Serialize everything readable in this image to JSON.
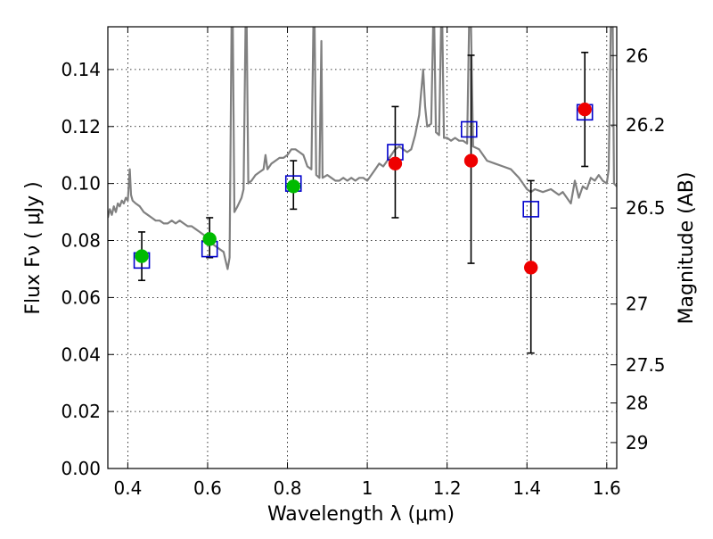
{
  "chart_data": {
    "type": "scatter",
    "title": "",
    "xlabel": "Wavelength  λ (μm)",
    "ylabel": "Flux  Fν  ( μJy )",
    "ylabel_right": "Magnitude (AB)",
    "xlim": [
      0.35,
      1.625
    ],
    "ylim": [
      0.0,
      0.155
    ],
    "grid": true,
    "x_ticks": [
      0.4,
      0.6,
      0.8,
      1.0,
      1.2,
      1.4,
      1.6
    ],
    "x_tick_labels": [
      "0.4",
      "0.6",
      "0.8",
      "1",
      "1.2",
      "1.4",
      "1.6"
    ],
    "y_ticks": [
      0.0,
      0.02,
      0.04,
      0.06,
      0.08,
      0.1,
      0.12,
      0.14
    ],
    "y_tick_labels": [
      "0.00",
      "0.02",
      "0.04",
      "0.06",
      "0.08",
      "0.10",
      "0.12",
      "0.14"
    ],
    "right_ticks": [
      {
        "label": "26",
        "flux": 0.1449
      },
      {
        "label": "26.2",
        "flux": 0.1205
      },
      {
        "label": "26.5",
        "flux": 0.0914
      },
      {
        "label": "27",
        "flux": 0.0577
      },
      {
        "label": "27.5",
        "flux": 0.0364
      },
      {
        "label": "28",
        "flux": 0.023
      },
      {
        "label": "29",
        "flux": 0.0091
      }
    ],
    "series": [
      {
        "marker": "line",
        "color": "#808080",
        "points": [
          [
            0.35,
            0.088
          ],
          [
            0.355,
            0.091
          ],
          [
            0.36,
            0.089
          ],
          [
            0.365,
            0.092
          ],
          [
            0.37,
            0.09
          ],
          [
            0.375,
            0.093
          ],
          [
            0.38,
            0.092
          ],
          [
            0.385,
            0.094
          ],
          [
            0.39,
            0.093
          ],
          [
            0.395,
            0.095
          ],
          [
            0.4,
            0.094
          ],
          [
            0.405,
            0.105
          ],
          [
            0.408,
            0.096
          ],
          [
            0.412,
            0.094
          ],
          [
            0.42,
            0.093
          ],
          [
            0.43,
            0.092
          ],
          [
            0.44,
            0.09
          ],
          [
            0.45,
            0.089
          ],
          [
            0.46,
            0.088
          ],
          [
            0.47,
            0.087
          ],
          [
            0.48,
            0.087
          ],
          [
            0.49,
            0.086
          ],
          [
            0.5,
            0.086
          ],
          [
            0.51,
            0.087
          ],
          [
            0.52,
            0.086
          ],
          [
            0.53,
            0.087
          ],
          [
            0.54,
            0.086
          ],
          [
            0.55,
            0.085
          ],
          [
            0.56,
            0.085
          ],
          [
            0.57,
            0.084
          ],
          [
            0.58,
            0.083
          ],
          [
            0.59,
            0.082
          ],
          [
            0.6,
            0.081
          ],
          [
            0.61,
            0.079
          ],
          [
            0.62,
            0.078
          ],
          [
            0.63,
            0.077
          ],
          [
            0.64,
            0.076
          ],
          [
            0.645,
            0.073
          ],
          [
            0.65,
            0.07
          ],
          [
            0.655,
            0.074
          ],
          [
            0.66,
            0.155
          ],
          [
            0.663,
            0.155
          ],
          [
            0.667,
            0.09
          ],
          [
            0.675,
            0.092
          ],
          [
            0.685,
            0.095
          ],
          [
            0.69,
            0.098
          ],
          [
            0.695,
            0.155
          ],
          [
            0.698,
            0.155
          ],
          [
            0.702,
            0.1
          ],
          [
            0.71,
            0.101
          ],
          [
            0.72,
            0.103
          ],
          [
            0.73,
            0.104
          ],
          [
            0.74,
            0.105
          ],
          [
            0.745,
            0.11
          ],
          [
            0.75,
            0.105
          ],
          [
            0.76,
            0.107
          ],
          [
            0.77,
            0.108
          ],
          [
            0.78,
            0.109
          ],
          [
            0.79,
            0.109
          ],
          [
            0.8,
            0.11
          ],
          [
            0.81,
            0.112
          ],
          [
            0.82,
            0.112
          ],
          [
            0.83,
            0.111
          ],
          [
            0.84,
            0.11
          ],
          [
            0.85,
            0.106
          ],
          [
            0.86,
            0.105
          ],
          [
            0.865,
            0.155
          ],
          [
            0.868,
            0.155
          ],
          [
            0.872,
            0.103
          ],
          [
            0.88,
            0.102
          ],
          [
            0.885,
            0.15
          ],
          [
            0.888,
            0.102
          ],
          [
            0.9,
            0.103
          ],
          [
            0.91,
            0.102
          ],
          [
            0.92,
            0.101
          ],
          [
            0.93,
            0.101
          ],
          [
            0.94,
            0.102
          ],
          [
            0.95,
            0.101
          ],
          [
            0.96,
            0.102
          ],
          [
            0.97,
            0.101
          ],
          [
            0.98,
            0.102
          ],
          [
            0.99,
            0.102
          ],
          [
            1.0,
            0.101
          ],
          [
            1.01,
            0.103
          ],
          [
            1.02,
            0.105
          ],
          [
            1.03,
            0.107
          ],
          [
            1.04,
            0.106
          ],
          [
            1.05,
            0.108
          ],
          [
            1.06,
            0.11
          ],
          [
            1.07,
            0.112
          ],
          [
            1.08,
            0.113
          ],
          [
            1.09,
            0.112
          ],
          [
            1.1,
            0.111
          ],
          [
            1.11,
            0.112
          ],
          [
            1.12,
            0.117
          ],
          [
            1.13,
            0.124
          ],
          [
            1.14,
            0.14
          ],
          [
            1.145,
            0.127
          ],
          [
            1.15,
            0.12
          ],
          [
            1.16,
            0.121
          ],
          [
            1.165,
            0.155
          ],
          [
            1.168,
            0.155
          ],
          [
            1.172,
            0.118
          ],
          [
            1.18,
            0.117
          ],
          [
            1.185,
            0.155
          ],
          [
            1.188,
            0.155
          ],
          [
            1.192,
            0.116
          ],
          [
            1.2,
            0.116
          ],
          [
            1.21,
            0.115
          ],
          [
            1.22,
            0.116
          ],
          [
            1.23,
            0.115
          ],
          [
            1.24,
            0.115
          ],
          [
            1.25,
            0.114
          ],
          [
            1.255,
            0.155
          ],
          [
            1.26,
            0.155
          ],
          [
            1.265,
            0.113
          ],
          [
            1.28,
            0.112
          ],
          [
            1.3,
            0.108
          ],
          [
            1.32,
            0.107
          ],
          [
            1.34,
            0.106
          ],
          [
            1.36,
            0.105
          ],
          [
            1.38,
            0.102
          ],
          [
            1.39,
            0.1
          ],
          [
            1.4,
            0.098
          ],
          [
            1.41,
            0.097
          ],
          [
            1.42,
            0.098
          ],
          [
            1.44,
            0.097
          ],
          [
            1.46,
            0.098
          ],
          [
            1.47,
            0.097
          ],
          [
            1.48,
            0.096
          ],
          [
            1.49,
            0.097
          ],
          [
            1.5,
            0.095
          ],
          [
            1.51,
            0.093
          ],
          [
            1.52,
            0.101
          ],
          [
            1.53,
            0.095
          ],
          [
            1.54,
            0.099
          ],
          [
            1.55,
            0.098
          ],
          [
            1.56,
            0.102
          ],
          [
            1.57,
            0.101
          ],
          [
            1.58,
            0.103
          ],
          [
            1.59,
            0.101
          ],
          [
            1.6,
            0.1
          ],
          [
            1.605,
            0.105
          ],
          [
            1.61,
            0.155
          ],
          [
            1.615,
            0.155
          ],
          [
            1.618,
            0.1
          ],
          [
            1.625,
            0.099
          ]
        ]
      },
      {
        "marker": "open-square",
        "color": "#0000cc",
        "points": [
          [
            0.435,
            0.073
          ],
          [
            0.605,
            0.077
          ],
          [
            0.815,
            0.1
          ],
          [
            1.07,
            0.111
          ],
          [
            1.255,
            0.119
          ],
          [
            1.41,
            0.091
          ],
          [
            1.545,
            0.125
          ]
        ]
      },
      {
        "marker": "filled-circle",
        "color": "#00bb00",
        "points": [
          [
            0.435,
            0.0745
          ],
          [
            0.605,
            0.0805
          ],
          [
            0.815,
            0.099
          ]
        ]
      },
      {
        "marker": "filled-circle",
        "color": "#ee0000",
        "points": [
          [
            1.07,
            0.107
          ],
          [
            1.26,
            0.108
          ],
          [
            1.41,
            0.0705
          ],
          [
            1.545,
            0.126
          ]
        ]
      }
    ],
    "error_bars": [
      {
        "x": 0.435,
        "low": 0.066,
        "high": 0.083
      },
      {
        "x": 0.605,
        "low": 0.074,
        "high": 0.088
      },
      {
        "x": 0.815,
        "low": 0.091,
        "high": 0.108
      },
      {
        "x": 1.07,
        "low": 0.088,
        "high": 0.127
      },
      {
        "x": 1.26,
        "low": 0.072,
        "high": 0.145
      },
      {
        "x": 1.41,
        "low": 0.0405,
        "high": 0.101
      },
      {
        "x": 1.545,
        "low": 0.106,
        "high": 0.146
      }
    ]
  }
}
